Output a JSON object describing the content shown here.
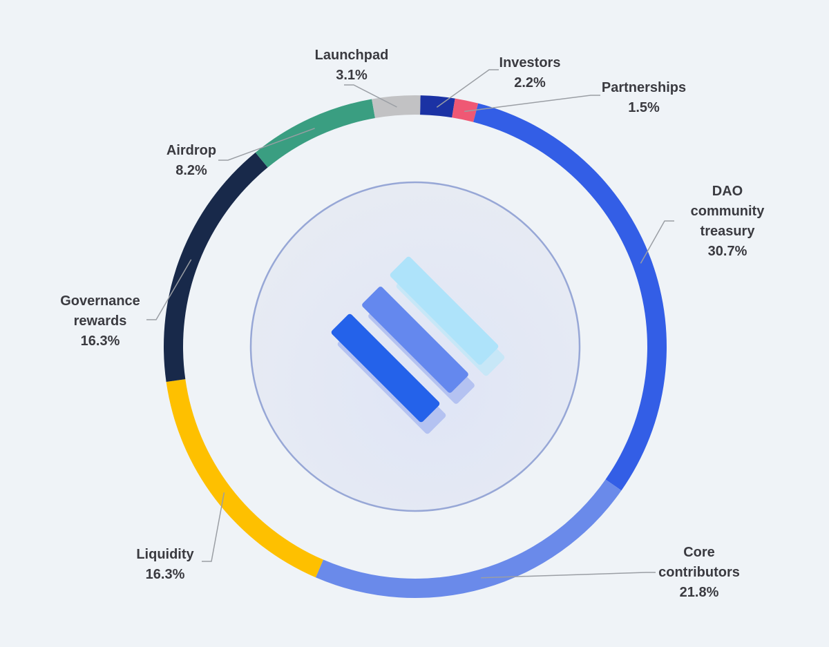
{
  "chart_data": {
    "type": "pie",
    "variant": "donut",
    "series": [
      {
        "name": "Investors",
        "lines": [
          "Investors"
        ],
        "pct_label": "2.2%",
        "value": 2.2,
        "color": "#1b32a4"
      },
      {
        "name": "Partnerships",
        "lines": [
          "Partnerships"
        ],
        "pct_label": "1.5%",
        "value": 1.5,
        "color": "#ef5874"
      },
      {
        "name": "DAO community treasury",
        "lines": [
          "DAO",
          "community",
          "treasury"
        ],
        "pct_label": "30.7%",
        "value": 30.7,
        "color": "#335ee6"
      },
      {
        "name": "Core contributors",
        "lines": [
          "Core",
          "contributors"
        ],
        "pct_label": "21.8%",
        "value": 21.8,
        "color": "#6a8aea"
      },
      {
        "name": "Liquidity",
        "lines": [
          "Liquidity"
        ],
        "pct_label": "16.3%",
        "value": 16.3,
        "color": "#fec000"
      },
      {
        "name": "Governance rewards",
        "lines": [
          "Governance",
          "rewards"
        ],
        "pct_label": "16.3%",
        "value": 16.3,
        "color": "#18294a"
      },
      {
        "name": "Airdrop",
        "lines": [
          "Airdrop"
        ],
        "pct_label": "8.2%",
        "value": 8.2,
        "color": "#3a9e81"
      },
      {
        "name": "Launchpad",
        "lines": [
          "Launchpad"
        ],
        "pct_label": "3.1%",
        "value": 3.1,
        "color": "#c2c2c4"
      }
    ],
    "legend": "none",
    "center_logo": "three-diagonal-bars-logo"
  },
  "colors": {
    "background": "#eff3f7",
    "label_text": "#3a3a40",
    "leader_line": "#9a9ea4",
    "inner_circle_fill": "#e4e9f3",
    "inner_circle_stroke": "#97a7d6",
    "logo_bar_dark": "#2462ea",
    "logo_bar_mid": "#6488ee",
    "logo_bar_light": "#aee3fa",
    "logo_shadow": "#b4c2f1"
  }
}
